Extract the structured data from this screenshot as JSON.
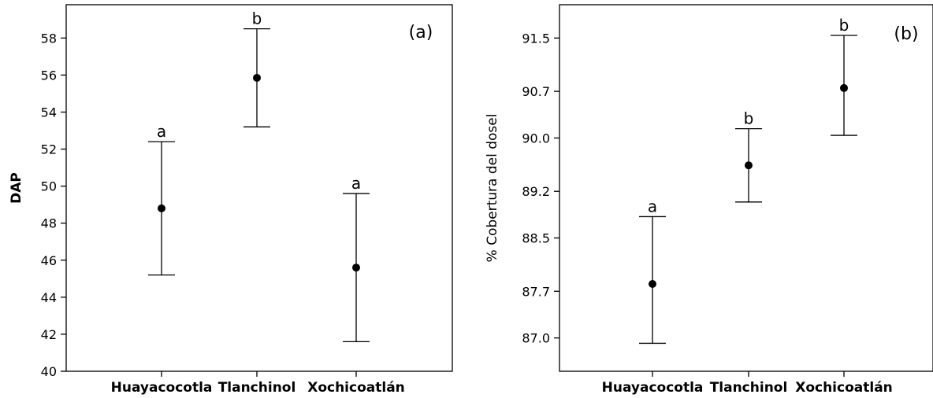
{
  "chart_data": [
    {
      "type": "interval",
      "panel_label": "(a)",
      "ylabel": "DAP",
      "categories": [
        "Huayacocotla",
        "Tlanchinol",
        "Xochicoatlán"
      ],
      "yticks": [
        "40",
        "42",
        "44",
        "46",
        "48",
        "50",
        "52",
        "54",
        "56",
        "58"
      ],
      "ylim": [
        40,
        59.8
      ],
      "series": [
        {
          "values": [
            48.8,
            55.85,
            45.6
          ],
          "lower": [
            45.2,
            53.2,
            41.6
          ],
          "upper": [
            52.4,
            58.5,
            49.6
          ],
          "letters": [
            "a",
            "b",
            "a"
          ]
        }
      ]
    },
    {
      "type": "interval",
      "panel_label": "(b)",
      "ylabel": "% Cobertura del dosel",
      "categories": [
        "Huayacocotla",
        "Tlanchinol",
        "Xochicoatlán"
      ],
      "yticks": [
        "87.0",
        "87.7",
        "88.5",
        "89.2",
        "90.0",
        "90.7",
        "91.5"
      ],
      "ylim": [
        86.5,
        92.0
      ],
      "series": [
        {
          "values": [
            87.81,
            89.59,
            90.75
          ],
          "lower": [
            86.92,
            89.04,
            90.04
          ],
          "upper": [
            88.82,
            90.14,
            91.54
          ],
          "letters": [
            "a",
            "b",
            "b"
          ]
        }
      ]
    }
  ]
}
